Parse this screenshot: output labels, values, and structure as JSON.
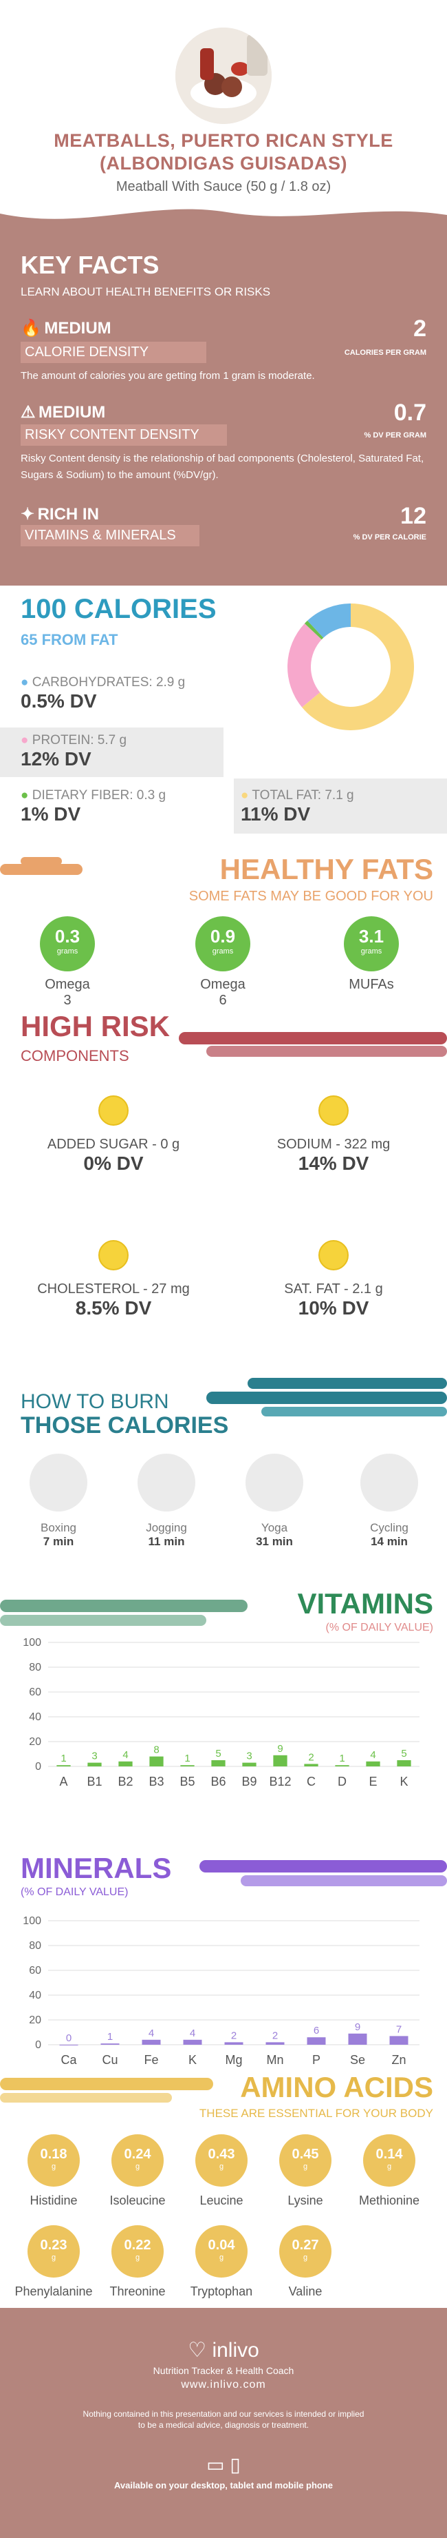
{
  "header": {
    "title": "MEATBALLS, PUERTO RICAN STYLE (ALBONDIGAS GUISADAS)",
    "subtitle": "Meatball With Sauce (50 g / 1.8 oz)"
  },
  "key_facts": {
    "title": "KEY FACTS",
    "subtitle": "LEARN ABOUT HEALTH BENEFITS OR RISKS",
    "calorie_density": {
      "level": "MEDIUM",
      "label": "CALORIE DENSITY",
      "value": "2",
      "unit": "CALORIES PER GRAM",
      "desc": "The amount of calories you are getting from 1 gram is moderate."
    },
    "risky_content": {
      "level": "MEDIUM",
      "label": "RISKY CONTENT DENSITY",
      "value": "0.7",
      "unit": "% DV PER GRAM",
      "desc": "Risky Content density is the relationship of bad components (Cholesterol, Saturated Fat, Sugars & Sodium) to the amount (%DV/gr)."
    },
    "rich_in": {
      "level": "RICH IN",
      "label": "VITAMINS & MINERALS",
      "value": "12",
      "unit": "% DV PER CALORIE"
    }
  },
  "calories": {
    "title": "100 CALORIES",
    "from_fat": "65 FROM FAT",
    "carbs": {
      "label": "CARBOHYDRATES: 2.9 g",
      "dv": "0.5% DV"
    },
    "protein": {
      "label": "PROTEIN: 5.7 g",
      "dv": "12% DV"
    },
    "fiber": {
      "label": "DIETARY FIBER: 0.3 g",
      "dv": "1% DV"
    },
    "fat": {
      "label": "TOTAL FAT: 7.1 g",
      "dv": "11% DV"
    },
    "donut": {
      "fat": 64,
      "protein": 23,
      "fiber": 1,
      "carbs": 12,
      "colors": {
        "fat": "#f9d77e",
        "protein": "#f7a8cc",
        "fiber": "#6cc04a",
        "carbs": "#6cb6e6"
      }
    }
  },
  "healthy_fats": {
    "title": "HEALTHY FATS",
    "subtitle": "SOME FATS MAY BE GOOD FOR YOU",
    "unit": "grams",
    "items": [
      {
        "value": "0.3",
        "label": "Omega 3"
      },
      {
        "value": "0.9",
        "label": "Omega 6"
      },
      {
        "value": "3.1",
        "label": "MUFAs"
      }
    ]
  },
  "high_risk": {
    "title": "HIGH RISK",
    "subtitle": "COMPONENTS",
    "items": [
      {
        "label": "ADDED SUGAR - 0 g",
        "dv": "0% DV"
      },
      {
        "label": "SODIUM - 322 mg",
        "dv": "14% DV"
      },
      {
        "label": "CHOLESTEROL - 27 mg",
        "dv": "8.5% DV"
      },
      {
        "label": "SAT. FAT - 2.1 g",
        "dv": "10% DV"
      }
    ]
  },
  "burn": {
    "title1": "HOW TO BURN",
    "title2": "THOSE CALORIES",
    "items": [
      {
        "label": "Boxing",
        "time": "7 min"
      },
      {
        "label": "Jogging",
        "time": "11 min"
      },
      {
        "label": "Yoga",
        "time": "31 min"
      },
      {
        "label": "Cycling",
        "time": "14 min"
      }
    ]
  },
  "vitamins": {
    "title": "VITAMINS",
    "subtitle": "(% OF DAILY VALUE)"
  },
  "minerals": {
    "title": "MINERALS",
    "subtitle": "(% OF DAILY VALUE)"
  },
  "chart_data": [
    {
      "type": "bar",
      "title": "VITAMINS",
      "ylabel": "(% OF DAILY VALUE)",
      "ylim": [
        0,
        100
      ],
      "yticks": [
        0,
        20,
        40,
        60,
        80,
        100
      ],
      "categories": [
        "A",
        "B1",
        "B2",
        "B3",
        "B5",
        "B6",
        "B9",
        "B12",
        "C",
        "D",
        "E",
        "K"
      ],
      "values": [
        1,
        3,
        4,
        8,
        1,
        5,
        3,
        9,
        2,
        1,
        4,
        5
      ],
      "color": "#6cc04a"
    },
    {
      "type": "bar",
      "title": "MINERALS",
      "ylabel": "(% OF DAILY VALUE)",
      "ylim": [
        0,
        100
      ],
      "yticks": [
        0,
        20,
        40,
        60,
        80,
        100
      ],
      "categories": [
        "Ca",
        "Cu",
        "Fe",
        "K",
        "Mg",
        "Mn",
        "P",
        "Se",
        "Zn"
      ],
      "values": [
        0,
        1,
        4,
        4,
        2,
        2,
        6,
        9,
        7
      ],
      "color": "#9b7fd9"
    }
  ],
  "amino": {
    "title": "AMINO ACIDS",
    "subtitle": "THESE ARE ESSENTIAL FOR YOUR BODY",
    "unit": "g",
    "items": [
      {
        "value": "0.18",
        "label": "Histidine"
      },
      {
        "value": "0.24",
        "label": "Isoleucine"
      },
      {
        "value": "0.43",
        "label": "Leucine"
      },
      {
        "value": "0.45",
        "label": "Lysine"
      },
      {
        "value": "0.14",
        "label": "Methionine"
      },
      {
        "value": "0.23",
        "label": "Phenylalanine"
      },
      {
        "value": "0.22",
        "label": "Threonine"
      },
      {
        "value": "0.04",
        "label": "Tryptophan"
      },
      {
        "value": "0.27",
        "label": "Valine"
      }
    ]
  },
  "footer": {
    "brand": "inlivo",
    "tagline": "Nutrition Tracker & Health Coach",
    "url": "www.inlivo.com",
    "disclaimer1": "Nothing contained in this presentation and our services is intended or implied",
    "disclaimer2": "to be a medical advice, diagnosis or treatment.",
    "available": "Available on your desktop, tablet and mobile phone"
  }
}
